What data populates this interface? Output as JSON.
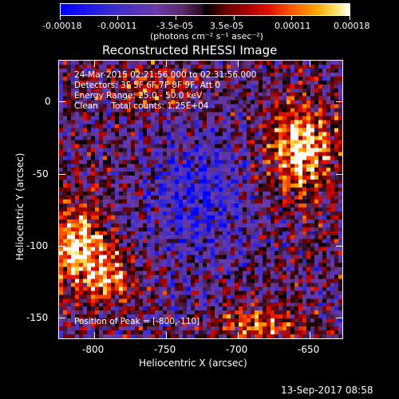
{
  "colorbar": {
    "ticks": [
      "-0.00018",
      "-0.00011",
      "-3.5e-05",
      "3.5e-05",
      "0.00011",
      "0.00018"
    ],
    "unit_label": "(photons cm⁻² s⁻¹ asec⁻²)"
  },
  "plot": {
    "title": "Reconstructed RHESSI Image",
    "info_lines": [
      "24-Mar-2015 02:21:56.000 to 02:31:56.000",
      "Detectors: 3F 5F 6F 7F 8F 9F, Att 0",
      "Energy Range: 25.0 - 50.0 keV",
      "Clean     Total counts: 1.25E+04"
    ],
    "peak_label": "Position of Peak = [-800,-110]",
    "xlabel": "Heliocentric X (arcsec)",
    "ylabel": "Heliocentric Y (arcsec)",
    "xticks": [
      "-800",
      "-750",
      "-700",
      "-650"
    ],
    "yticks": [
      "0",
      "-50",
      "-100",
      "-150"
    ],
    "footer_date": "13-Sep-2017 08:58"
  },
  "colors": {
    "background": "#000000",
    "frame": "#ffffff"
  }
}
